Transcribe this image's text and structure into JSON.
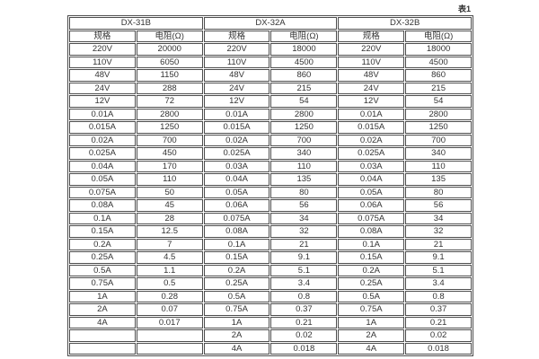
{
  "page": {
    "table_label": "表1"
  },
  "table": {
    "row_count": 24,
    "groups": [
      {
        "name": "DX-31B",
        "headers": {
          "spec": "规格",
          "resistance": "电阻(Ω)"
        },
        "rows": [
          [
            "220V",
            "20000"
          ],
          [
            "110V",
            "6050"
          ],
          [
            "48V",
            "1150"
          ],
          [
            "24V",
            "288"
          ],
          [
            "12V",
            "72"
          ],
          [
            "0.01A",
            "2800"
          ],
          [
            "0.015A",
            "1250"
          ],
          [
            "0.02A",
            "700"
          ],
          [
            "0.025A",
            "450"
          ],
          [
            "0.04A",
            "170"
          ],
          [
            "0.05A",
            "110"
          ],
          [
            "0.075A",
            "50"
          ],
          [
            "0.08A",
            "45"
          ],
          [
            "0.1A",
            "28"
          ],
          [
            "0.15A",
            "12.5"
          ],
          [
            "0.2A",
            "7"
          ],
          [
            "0.25A",
            "4.5"
          ],
          [
            "0.5A",
            "1.1"
          ],
          [
            "0.75A",
            "0.5"
          ],
          [
            "1A",
            "0.28"
          ],
          [
            "2A",
            "0.07"
          ],
          [
            "4A",
            "0.017"
          ],
          [
            "",
            ""
          ],
          [
            "",
            ""
          ]
        ]
      },
      {
        "name": "DX-32A",
        "headers": {
          "spec": "规格",
          "resistance": "电阻(Ω)"
        },
        "rows": [
          [
            "220V",
            "18000"
          ],
          [
            "110V",
            "4500"
          ],
          [
            "48V",
            "860"
          ],
          [
            "24V",
            "215"
          ],
          [
            "12V",
            "54"
          ],
          [
            "0.01A",
            "2800"
          ],
          [
            "0.015A",
            "1250"
          ],
          [
            "0.02A",
            "700"
          ],
          [
            "0.025A",
            "340"
          ],
          [
            "0.03A",
            "110"
          ],
          [
            "0.04A",
            "135"
          ],
          [
            "0.05A",
            "80"
          ],
          [
            "0.06A",
            "56"
          ],
          [
            "0.075A",
            "34"
          ],
          [
            "0.08A",
            "32"
          ],
          [
            "0.1A",
            "21"
          ],
          [
            "0.15A",
            "9.1"
          ],
          [
            "0.2A",
            "5.1"
          ],
          [
            "0.25A",
            "3.4"
          ],
          [
            "0.5A",
            "0.8"
          ],
          [
            "0.75A",
            "0.37"
          ],
          [
            "1A",
            "0.21"
          ],
          [
            "2A",
            "0.02"
          ],
          [
            "4A",
            "0.018"
          ]
        ]
      },
      {
        "name": "DX-32B",
        "headers": {
          "spec": "规格",
          "resistance": "电阻(Ω)"
        },
        "rows": [
          [
            "220V",
            "18000"
          ],
          [
            "110V",
            "4500"
          ],
          [
            "48V",
            "860"
          ],
          [
            "24V",
            "215"
          ],
          [
            "12V",
            "54"
          ],
          [
            "0.01A",
            "2800"
          ],
          [
            "0.015A",
            "1250"
          ],
          [
            "0.02A",
            "700"
          ],
          [
            "0.025A",
            "340"
          ],
          [
            "0.03A",
            "110"
          ],
          [
            "0.04A",
            "135"
          ],
          [
            "0.05A",
            "80"
          ],
          [
            "0.06A",
            "56"
          ],
          [
            "0.075A",
            "34"
          ],
          [
            "0.08A",
            "32"
          ],
          [
            "0.1A",
            "21"
          ],
          [
            "0.15A",
            "9.1"
          ],
          [
            "0.2A",
            "5.1"
          ],
          [
            "0.25A",
            "3.4"
          ],
          [
            "0.5A",
            "0.8"
          ],
          [
            "0.75A",
            "0.37"
          ],
          [
            "1A",
            "0.21"
          ],
          [
            "2A",
            "0.02"
          ],
          [
            "4A",
            "0.018"
          ]
        ]
      }
    ]
  },
  "colors": {
    "border": "#4d4d4d",
    "text": "#333333",
    "background": "#ffffff"
  }
}
